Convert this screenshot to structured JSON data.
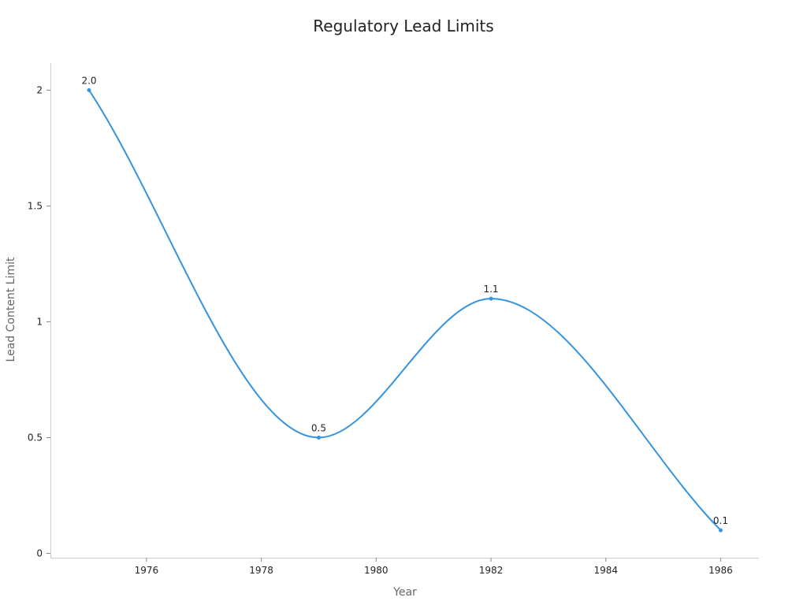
{
  "chart_data": {
    "type": "line",
    "title": "Regulatory Lead Limits",
    "xlabel": "Year",
    "ylabel": "Lead Content Limit",
    "x": [
      1975,
      1979,
      1982,
      1986
    ],
    "series": [
      {
        "values": [
          2.0,
          0.5,
          1.1,
          0.1
        ],
        "data_labels": [
          "2.0",
          "0.5",
          "1.1",
          "0.1"
        ]
      }
    ],
    "xlim": [
      1973.33,
      1985.67
    ],
    "ylim": [
      0,
      2.1
    ],
    "x_ticks": [
      1976,
      1978,
      1980,
      1982,
      1984,
      1986
    ],
    "x_tick_labels": [
      "1976",
      "1978",
      "1980",
      "1982",
      "1984",
      "1986"
    ],
    "y_ticks": [
      0,
      0.5,
      1,
      1.5,
      2
    ],
    "y_tick_labels": [
      "0",
      "0.5",
      "1",
      "1.5",
      "2"
    ],
    "grid": false,
    "smooth": true,
    "colors": {
      "line": "#3393df",
      "axis": "#cccccc"
    }
  }
}
